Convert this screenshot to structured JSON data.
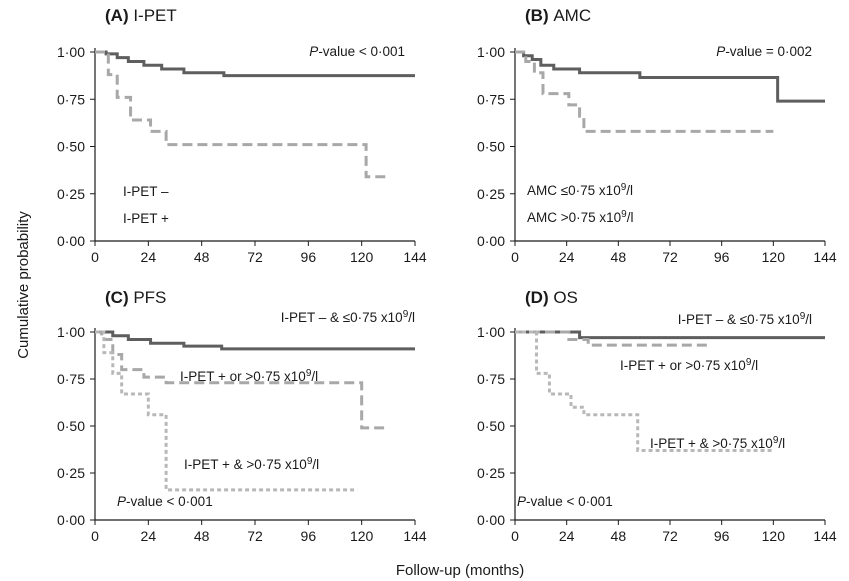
{
  "figure": {
    "ylabel": "Cumulative probability",
    "xlabel": "Follow-up (months)"
  },
  "colors": {
    "solid": "#5e5e5e",
    "dashed": "#a8a8a8",
    "dotted": "#b8b8b8",
    "axis": "#1a1a1a"
  },
  "chart_data": [
    {
      "type": "line",
      "step": true,
      "letter": "(A)",
      "name": "I-PET",
      "pvalue_italic": "P",
      "pvalue_rest": "-value < 0·001",
      "xlim": [
        0,
        144
      ],
      "ylim": [
        0,
        1
      ],
      "xticks": [
        "0",
        "24",
        "48",
        "72",
        "96",
        "120",
        "144"
      ],
      "yticks": [
        "0·00",
        "0·25",
        "0·50",
        "0·75",
        "1·00"
      ],
      "legend": [
        {
          "label": "I-PET –",
          "style": "solid"
        },
        {
          "label": "I-PET +",
          "style": "dashed"
        }
      ],
      "annotations": [],
      "series": [
        {
          "style": "solid",
          "x": [
            0,
            5,
            10,
            15,
            22,
            30,
            40,
            58,
            144
          ],
          "y": [
            1,
            0.99,
            0.97,
            0.95,
            0.93,
            0.91,
            0.89,
            0.875,
            0.875
          ]
        },
        {
          "style": "dashed",
          "x": [
            0,
            6,
            10,
            16,
            25,
            32,
            122,
            132
          ],
          "y": [
            1,
            0.88,
            0.76,
            0.64,
            0.58,
            0.51,
            0.34,
            0.34
          ]
        }
      ]
    },
    {
      "type": "line",
      "step": true,
      "letter": "(B)",
      "name": "AMC",
      "pvalue_italic": "P",
      "pvalue_rest": "-value = 0·002",
      "xlim": [
        0,
        144
      ],
      "ylim": [
        0,
        1
      ],
      "xticks": [
        "0",
        "24",
        "48",
        "72",
        "96",
        "120",
        "144"
      ],
      "yticks": [
        "0·00",
        "0·25",
        "0·50",
        "0·75",
        "1·00"
      ],
      "legend": [
        {
          "label": "AMC ≤0·75 x10",
          "sup": "9",
          "after": "/l",
          "style": "solid"
        },
        {
          "label": "AMC >0·75 x10",
          "sup": "9",
          "after": "/l",
          "style": "dashed"
        }
      ],
      "annotations": [],
      "series": [
        {
          "style": "solid",
          "x": [
            0,
            4,
            8,
            12,
            18,
            30,
            58,
            122,
            144
          ],
          "y": [
            1,
            0.98,
            0.96,
            0.93,
            0.91,
            0.89,
            0.865,
            0.74,
            0.74
          ]
        },
        {
          "style": "dashed",
          "x": [
            0,
            5,
            9,
            13,
            25,
            30,
            32,
            120
          ],
          "y": [
            1,
            0.95,
            0.89,
            0.78,
            0.72,
            0.66,
            0.58,
            0.58
          ]
        }
      ]
    },
    {
      "type": "line",
      "step": true,
      "letter": "(C)",
      "name": "PFS",
      "pvalue_italic": "P",
      "pvalue_rest": "-value < 0·001",
      "xlim": [
        0,
        144
      ],
      "ylim": [
        0,
        1
      ],
      "xticks": [
        "0",
        "24",
        "48",
        "72",
        "96",
        "120",
        "144"
      ],
      "yticks": [
        "0·00",
        "0·25",
        "0·50",
        "0·75",
        "1·00"
      ],
      "legend": [],
      "annotations": [
        {
          "label": "I-PET – & ≤0·75 x10",
          "sup": "9",
          "after": "/l"
        },
        {
          "label": "I-PET + or >0·75 x10",
          "sup": "9",
          "after": "/l"
        },
        {
          "label": "I-PET + & >0·75 x10",
          "sup": "9",
          "after": "/l"
        }
      ],
      "series": [
        {
          "style": "solid",
          "x": [
            0,
            8,
            15,
            25,
            40,
            57,
            144
          ],
          "y": [
            1,
            0.98,
            0.96,
            0.94,
            0.925,
            0.91,
            0.91
          ]
        },
        {
          "style": "dashed",
          "x": [
            0,
            3,
            8,
            12,
            22,
            32,
            120,
            132
          ],
          "y": [
            1,
            0.96,
            0.88,
            0.8,
            0.76,
            0.73,
            0.49,
            0.49
          ]
        },
        {
          "style": "dotted",
          "x": [
            0,
            4,
            8,
            12,
            24,
            32,
            118
          ],
          "y": [
            1,
            0.89,
            0.78,
            0.67,
            0.56,
            0.16,
            0.16
          ]
        }
      ]
    },
    {
      "type": "line",
      "step": true,
      "letter": "(D)",
      "name": "OS",
      "pvalue_italic": "P",
      "pvalue_rest": "-value < 0·001",
      "xlim": [
        0,
        144
      ],
      "ylim": [
        0,
        1
      ],
      "xticks": [
        "0",
        "24",
        "48",
        "72",
        "96",
        "120",
        "144"
      ],
      "yticks": [
        "0·00",
        "0·25",
        "0·50",
        "0·75",
        "1·00"
      ],
      "legend": [],
      "annotations": [
        {
          "label": "I-PET – & ≤0·75 x10",
          "sup": "9",
          "after": "/l"
        },
        {
          "label": "I-PET + or >0·75 x10",
          "sup": "9",
          "after": "/l"
        },
        {
          "label": "I-PET + & >0·75 x10",
          "sup": "9",
          "after": "/l"
        }
      ],
      "series": [
        {
          "style": "solid",
          "x": [
            0,
            30,
            144
          ],
          "y": [
            1,
            0.97,
            0.97
          ]
        },
        {
          "style": "dashed",
          "x": [
            0,
            25,
            34,
            90
          ],
          "y": [
            1,
            0.96,
            0.93,
            0.93
          ]
        },
        {
          "style": "dotted",
          "x": [
            0,
            10,
            16,
            26,
            32,
            57,
            120
          ],
          "y": [
            1,
            0.78,
            0.67,
            0.6,
            0.56,
            0.37,
            0.37
          ]
        }
      ]
    }
  ]
}
